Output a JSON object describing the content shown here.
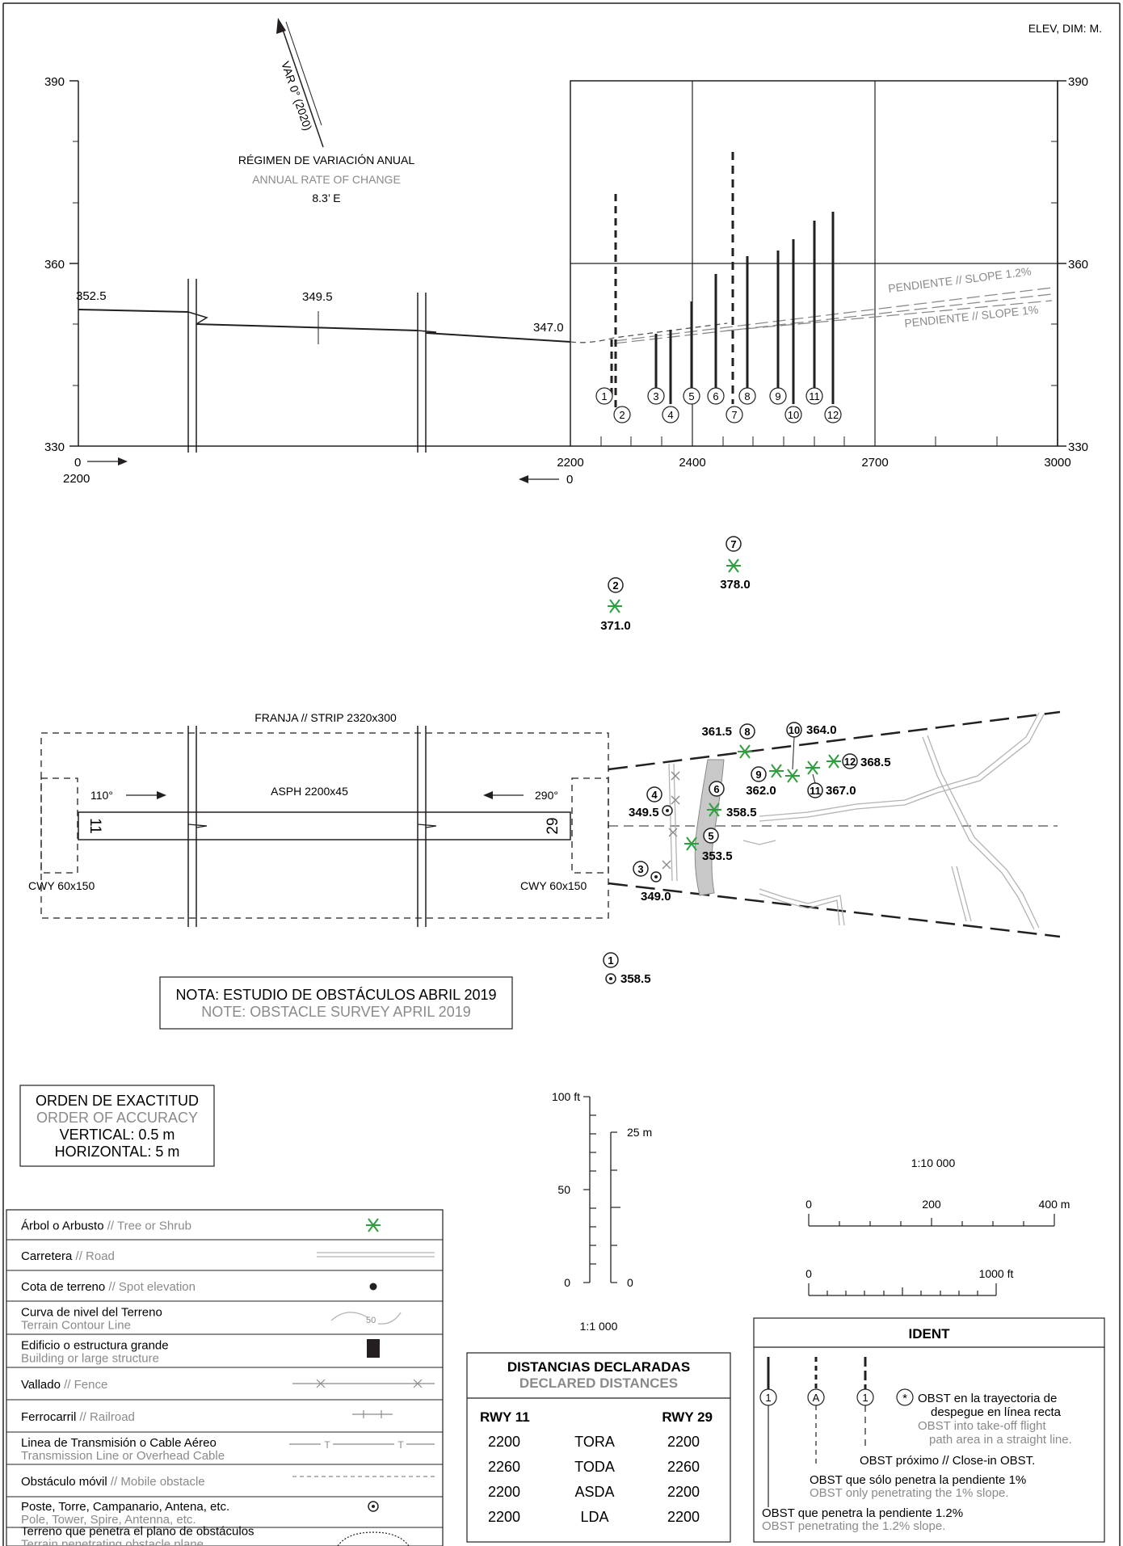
{
  "header": {
    "units": "ELEV, DIM: M."
  },
  "profile": {
    "y_labels": [
      "390",
      "360",
      "330"
    ],
    "left_start_bottom": "0",
    "left_start_value": "2200",
    "x_labels": [
      "2200",
      "2400",
      "2700",
      "3000"
    ],
    "right_zero": "0",
    "elev_labels": [
      "352.5",
      "349.5",
      "347.0"
    ],
    "slope_12": "PENDIENTE  //  SLOPE 1.2%",
    "slope_1": "PENDIENTE  //  SLOPE 1%",
    "obstacle_ids": [
      "1",
      "2",
      "3",
      "4",
      "5",
      "6",
      "7",
      "8",
      "9",
      "10",
      "11",
      "12"
    ]
  },
  "magnetic": {
    "var": "VAR 0° (2020)",
    "rate_es": "RÉGIMEN DE VARIACIÓN ANUAL",
    "rate_en": "ANNUAL RATE OF CHANGE",
    "rate_val": "8.3’ E"
  },
  "tall_obstacles": [
    {
      "id": "2",
      "elev": "371.0"
    },
    {
      "id": "7",
      "elev": "378.0"
    }
  ],
  "plan": {
    "strip": "FRANJA  //  STRIP 2320x300",
    "runway": "ASPH 2200x45",
    "hdg_110": "110°",
    "hdg_290": "290°",
    "thr_11": "11",
    "thr_29": "29",
    "cwy_left": "CWY 60x150",
    "cwy_right": "CWY 60x150",
    "obstacles": [
      {
        "id": "1",
        "elev": "358.5"
      },
      {
        "id": "3",
        "elev": "349.0"
      },
      {
        "id": "4",
        "elev": "349.5"
      },
      {
        "id": "5",
        "elev": "353.5"
      },
      {
        "id": "6",
        "elev": "358.5"
      },
      {
        "id": "8",
        "elev": "361.5"
      },
      {
        "id": "9",
        "elev": "362.0"
      },
      {
        "id": "10",
        "elev": "364.0"
      },
      {
        "id": "11",
        "elev": "367.0"
      },
      {
        "id": "12",
        "elev": "368.5"
      }
    ]
  },
  "note": {
    "es": "NOTA: ESTUDIO DE OBSTÁCULOS ABRIL 2019",
    "en": "NOTE: OBSTACLE SURVEY APRIL 2019"
  },
  "accuracy": {
    "es": "ORDEN DE EXACTITUD",
    "en": "ORDER OF ACCURACY",
    "vertical": "VERTICAL: 0.5 m",
    "horizontal": "HORIZONTAL: 5 m"
  },
  "vscale": {
    "ft_100": "100 ft",
    "ft_50": "50",
    "ft_0": "0",
    "m_25": "25 m",
    "m_0": "0",
    "ratio": "1:1 000"
  },
  "hscale": {
    "ratio": "1:10 000",
    "m_labels": [
      "0",
      "200",
      "400 m"
    ],
    "ft_labels": [
      "0",
      "1000 ft"
    ]
  },
  "legend": [
    {
      "es": "Árbol o Arbusto",
      "en": "Tree or Shrub",
      "sep": "  //  "
    },
    {
      "es": "Carretera",
      "en": "Road",
      "sep": "  //  "
    },
    {
      "es": "Cota de terreno",
      "en": "Spot elevation",
      "sep": "  //  "
    },
    {
      "es": "Curva de nivel del Terreno",
      "en": "Terrain Contour Line"
    },
    {
      "es": "Edificio o estructura grande",
      "en": "Building or large structure"
    },
    {
      "es": "Vallado",
      "en": "Fence",
      "sep": "  //  "
    },
    {
      "es": "Ferrocarril",
      "en": "Railroad",
      "sep": " // "
    },
    {
      "es": "Linea de Transmisión o Cable Aéreo",
      "en": "Transmission Line or Overhead Cable"
    },
    {
      "es": "Obstáculo móvil",
      "en": "Mobile obstacle",
      "sep": " // "
    },
    {
      "es": "Poste, Torre, Campanario, Antena, etc.",
      "en": "Pole, Tower, Spire, Antenna, etc."
    },
    {
      "es": "Terreno que penetra el plano de obstáculos",
      "en": "Terrain penetrating obstacle plane"
    }
  ],
  "legend_symbols": {
    "contour": "50",
    "line_t": "T"
  },
  "distances": {
    "title_es": "DISTANCIAS DECLARADAS",
    "title_en": "DECLARED DISTANCES",
    "col_left": "RWY 11",
    "col_right": "RWY 29",
    "rows": [
      {
        "l": "2200",
        "label": "TORA",
        "r": "2200"
      },
      {
        "l": "2260",
        "label": "TODA",
        "r": "2260"
      },
      {
        "l": "2200",
        "label": "ASDA",
        "r": "2200"
      },
      {
        "l": "2200",
        "label": "LDA",
        "r": "2200"
      }
    ]
  },
  "ident": {
    "title": "IDENT",
    "sym_1": "1",
    "sym_a": "A",
    "sym_star": "*",
    "t_path_es": "OBST en la trayectoria de",
    "t_path_es2": "despegue en línea recta",
    "t_path_en": "OBST into take-off flight",
    "t_path_en2": "path area in a straight line.",
    "t_close": "OBST próximo // Close-in OBST.",
    "t_1_es": "OBST que sólo penetra la pendiente 1%",
    "t_1_en": "OBST only penetrating the 1% slope.",
    "t_12_es": "OBST que penetra la pendiente 1.2%",
    "t_12_en": "OBST penetrating the 1.2% slope."
  },
  "colors": {
    "ink": "#231f20",
    "gray": "#8a8a8a",
    "tree": "#2e9e3e",
    "road": "#b3b3b3",
    "bank": "#c8c8c8"
  }
}
